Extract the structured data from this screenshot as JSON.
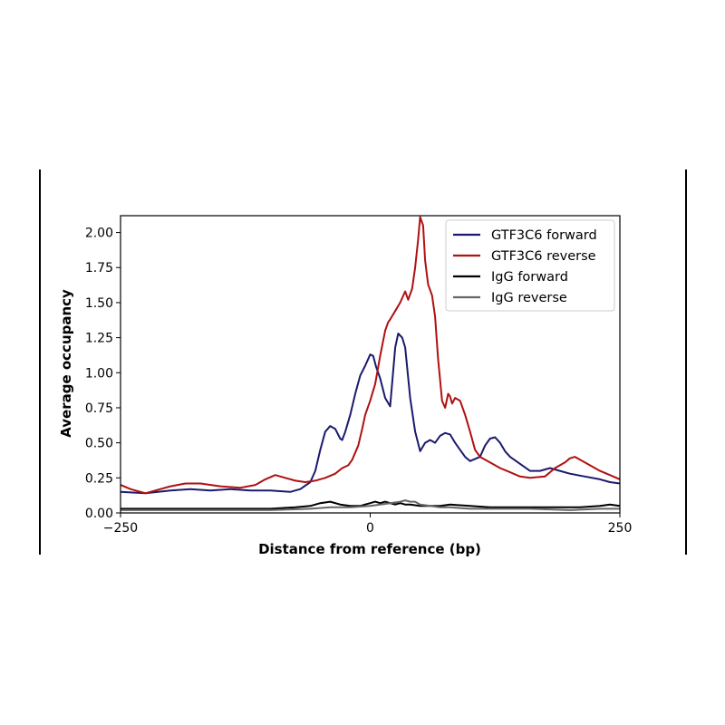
{
  "chart_data": {
    "type": "line",
    "xlabel": "Distance from reference (bp)",
    "ylabel": "Average occupancy",
    "xlim": [
      -250,
      250
    ],
    "ylim": [
      0,
      2.12
    ],
    "xticks": [
      -250,
      0,
      250
    ],
    "yticks": [
      0.0,
      0.25,
      0.5,
      0.75,
      1.0,
      1.25,
      1.5,
      1.75,
      2.0
    ],
    "ytick_labels": [
      "0.00",
      "0.25",
      "0.50",
      "0.75",
      "1.00",
      "1.25",
      "1.50",
      "1.75",
      "2.00"
    ],
    "xtick_labels": [
      "−250",
      "0",
      "250"
    ],
    "grid": false,
    "legend_position": "top-right",
    "series": [
      {
        "name": "GTF3C6 forward",
        "color": "#1a1a6e",
        "x": [
          -250,
          -225,
          -200,
          -180,
          -160,
          -140,
          -120,
          -100,
          -80,
          -70,
          -60,
          -55,
          -50,
          -45,
          -40,
          -35,
          -30,
          -28,
          -25,
          -20,
          -15,
          -10,
          -5,
          0,
          3,
          6,
          10,
          15,
          20,
          25,
          28,
          32,
          35,
          40,
          45,
          50,
          55,
          60,
          65,
          70,
          75,
          80,
          85,
          90,
          95,
          100,
          110,
          115,
          120,
          125,
          130,
          135,
          140,
          150,
          160,
          170,
          180,
          190,
          200,
          215,
          230,
          240,
          250
        ],
        "y": [
          0.15,
          0.14,
          0.16,
          0.17,
          0.16,
          0.17,
          0.16,
          0.16,
          0.15,
          0.17,
          0.22,
          0.3,
          0.45,
          0.58,
          0.62,
          0.6,
          0.53,
          0.52,
          0.58,
          0.7,
          0.85,
          0.98,
          1.05,
          1.13,
          1.12,
          1.04,
          0.96,
          0.82,
          0.76,
          1.18,
          1.28,
          1.25,
          1.18,
          0.82,
          0.58,
          0.44,
          0.5,
          0.52,
          0.5,
          0.55,
          0.57,
          0.56,
          0.5,
          0.45,
          0.4,
          0.37,
          0.4,
          0.48,
          0.53,
          0.54,
          0.5,
          0.44,
          0.4,
          0.35,
          0.3,
          0.3,
          0.32,
          0.3,
          0.28,
          0.26,
          0.24,
          0.22,
          0.21
        ]
      },
      {
        "name": "GTF3C6 reverse",
        "color": "#b01010",
        "x": [
          -250,
          -240,
          -225,
          -215,
          -200,
          -185,
          -170,
          -150,
          -130,
          -115,
          -105,
          -95,
          -85,
          -75,
          -65,
          -55,
          -45,
          -35,
          -28,
          -22,
          -18,
          -12,
          -8,
          -5,
          0,
          5,
          10,
          15,
          18,
          20,
          25,
          30,
          35,
          38,
          42,
          45,
          48,
          50,
          53,
          55,
          58,
          62,
          65,
          68,
          72,
          75,
          78,
          80,
          82,
          85,
          90,
          95,
          100,
          105,
          110,
          120,
          130,
          140,
          150,
          160,
          175,
          185,
          195,
          200,
          205,
          215,
          230,
          240,
          250
        ],
        "y": [
          0.2,
          0.17,
          0.14,
          0.16,
          0.19,
          0.21,
          0.21,
          0.19,
          0.18,
          0.2,
          0.24,
          0.27,
          0.25,
          0.23,
          0.22,
          0.23,
          0.25,
          0.28,
          0.32,
          0.34,
          0.38,
          0.48,
          0.6,
          0.7,
          0.8,
          0.92,
          1.12,
          1.3,
          1.36,
          1.38,
          1.44,
          1.5,
          1.58,
          1.52,
          1.6,
          1.75,
          1.95,
          2.11,
          2.05,
          1.8,
          1.63,
          1.55,
          1.4,
          1.1,
          0.8,
          0.75,
          0.85,
          0.83,
          0.78,
          0.82,
          0.8,
          0.7,
          0.58,
          0.45,
          0.4,
          0.36,
          0.32,
          0.29,
          0.26,
          0.25,
          0.26,
          0.32,
          0.36,
          0.39,
          0.4,
          0.36,
          0.3,
          0.27,
          0.24
        ]
      },
      {
        "name": "IgG forward",
        "color": "#000000",
        "x": [
          -250,
          -200,
          -150,
          -100,
          -75,
          -60,
          -50,
          -40,
          -30,
          -20,
          -10,
          -5,
          0,
          5,
          10,
          15,
          20,
          25,
          30,
          35,
          40,
          50,
          60,
          70,
          80,
          100,
          120,
          150,
          180,
          210,
          230,
          240,
          250
        ],
        "y": [
          0.03,
          0.03,
          0.03,
          0.03,
          0.04,
          0.05,
          0.07,
          0.08,
          0.06,
          0.05,
          0.05,
          0.06,
          0.07,
          0.08,
          0.07,
          0.08,
          0.07,
          0.06,
          0.07,
          0.06,
          0.06,
          0.05,
          0.05,
          0.05,
          0.06,
          0.05,
          0.04,
          0.04,
          0.04,
          0.04,
          0.05,
          0.06,
          0.05
        ]
      },
      {
        "name": "IgG reverse",
        "color": "#666666",
        "x": [
          -250,
          -200,
          -150,
          -100,
          -60,
          -40,
          -20,
          0,
          10,
          20,
          30,
          35,
          40,
          45,
          50,
          60,
          70,
          80,
          100,
          130,
          160,
          200,
          230,
          250
        ],
        "y": [
          0.02,
          0.02,
          0.02,
          0.02,
          0.03,
          0.04,
          0.04,
          0.05,
          0.06,
          0.07,
          0.08,
          0.09,
          0.08,
          0.08,
          0.06,
          0.05,
          0.04,
          0.04,
          0.03,
          0.03,
          0.03,
          0.02,
          0.03,
          0.03
        ]
      }
    ]
  }
}
